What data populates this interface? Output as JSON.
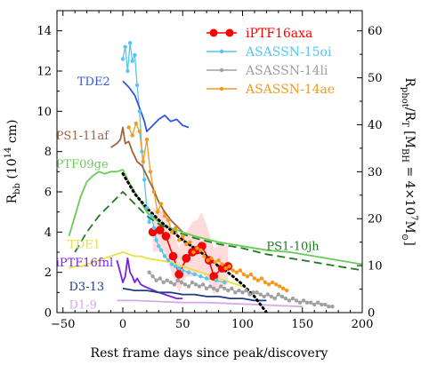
{
  "chart_data": {
    "type": "line",
    "xlabel": "Rest frame days since peak/discovery",
    "ylabel_left": "R_bb (10^14 cm)",
    "ylabel_left_parts": [
      "R",
      "bb",
      " (10",
      "14",
      " cm)"
    ],
    "ylabel_right": "R_phot/R_T [M_BH = 4×10^7 M_⊙]",
    "ylabel_right_parts": [
      "R",
      "phot",
      "/R",
      "T",
      " [M",
      "BH",
      " = 4×10",
      "7",
      "M",
      "⊙",
      "]"
    ],
    "xlim": [
      -55,
      200
    ],
    "ylim_left": [
      0,
      15
    ],
    "ylim_right": [
      0,
      64.3
    ],
    "xticks": [
      -50,
      0,
      50,
      100,
      150,
      200
    ],
    "xtick_labels": [
      "−50",
      "0",
      "50",
      "100",
      "150",
      "200"
    ],
    "yticks_left": [
      0,
      2,
      4,
      6,
      8,
      10,
      12,
      14
    ],
    "yticks_left_labels": [
      "0",
      "2",
      "4",
      "6",
      "8",
      "10",
      "12",
      "14"
    ],
    "yticks_right": [
      0,
      10,
      20,
      30,
      40,
      50,
      60
    ],
    "yticks_right_labels": [
      "0",
      "10",
      "20",
      "30",
      "40",
      "50",
      "60"
    ],
    "legend_position": "top-right",
    "legend": [
      {
        "name": "iPTF16axa",
        "color": "#ff0000",
        "marker": "circle-large"
      },
      {
        "name": "ASASSN-15oi",
        "color": "#55c6f0",
        "marker": "circle-small"
      },
      {
        "name": "ASASSN-14li",
        "color": "#a0a0a0",
        "marker": "circle-small"
      },
      {
        "name": "ASASSN-14ae",
        "color": "#f39a1e",
        "marker": "circle-small"
      }
    ],
    "series": [
      {
        "name": "iPTF16axa",
        "color": "#ff0000",
        "markers": true,
        "x": [
          25,
          31,
          36,
          42,
          47,
          53,
          58,
          62,
          66,
          72,
          76,
          83,
          88
        ],
        "y": [
          4.0,
          4.1,
          3.8,
          2.8,
          1.9,
          2.7,
          3.0,
          3.1,
          3.3,
          2.6,
          1.8,
          2.2,
          2.3
        ],
        "band_upper": [
          5.2,
          5.1,
          4.9,
          4.0,
          3.2,
          4.0,
          4.5,
          4.6,
          5.0,
          4.0,
          3.2,
          3.4,
          3.3
        ],
        "band_lower": [
          3.0,
          3.1,
          2.8,
          1.8,
          1.0,
          1.8,
          1.8,
          1.9,
          2.0,
          1.5,
          0.9,
          1.3,
          1.4
        ]
      },
      {
        "name": "ASASSN-15oi",
        "color": "#55c6f0",
        "markers": true,
        "x": [
          0,
          2,
          4,
          6,
          8,
          10,
          12,
          14,
          16,
          18,
          20,
          22,
          24,
          26,
          28,
          30,
          32,
          35,
          38,
          41,
          44,
          47,
          50,
          55,
          60,
          65,
          70,
          78,
          85
        ],
        "y": [
          12.6,
          13.2,
          12.0,
          13.4,
          12.5,
          12.8,
          11.3,
          10.0,
          8.0,
          6.6,
          5.2,
          4.5,
          4.8,
          4.2,
          3.6,
          3.3,
          3.1,
          2.8,
          2.6,
          2.4,
          2.3,
          2.2,
          2.1,
          2.0,
          1.9,
          1.8,
          1.7,
          1.6,
          1.5
        ]
      },
      {
        "name": "ASASSN-14li",
        "color": "#a0a0a0",
        "markers": true,
        "x": [
          22,
          25,
          28,
          31,
          34,
          37,
          40,
          43,
          46,
          49,
          52,
          55,
          58,
          61,
          64,
          67,
          70,
          73,
          76,
          79,
          82,
          85,
          88,
          91,
          94,
          97,
          100,
          103,
          106,
          109,
          112,
          115,
          118,
          121,
          124,
          127,
          130,
          133,
          136,
          139,
          142,
          145,
          148,
          151,
          154,
          157,
          160,
          163,
          166,
          169,
          172,
          175
        ],
        "y": [
          2.0,
          1.8,
          1.6,
          1.7,
          1.5,
          1.6,
          1.5,
          1.4,
          1.6,
          1.5,
          1.4,
          1.3,
          1.5,
          1.4,
          1.3,
          1.4,
          1.2,
          1.3,
          1.2,
          1.1,
          1.3,
          1.2,
          1.1,
          1.2,
          1.0,
          1.1,
          1.0,
          1.1,
          0.9,
          1.0,
          1.0,
          0.9,
          0.8,
          0.9,
          0.8,
          0.7,
          0.9,
          0.8,
          0.7,
          0.6,
          0.7,
          0.6,
          0.5,
          0.6,
          0.5,
          0.5,
          0.4,
          0.5,
          0.4,
          0.4,
          0.3,
          0.3
        ]
      },
      {
        "name": "ASASSN-14ae",
        "color": "#f39a1e",
        "markers": true,
        "x": [
          5,
          8,
          11,
          14,
          17,
          20,
          23,
          26,
          29,
          32,
          35,
          38,
          41,
          44,
          47,
          50,
          53,
          56,
          59,
          62,
          65,
          68,
          71,
          74,
          77,
          80,
          83,
          86,
          89,
          92,
          95,
          98,
          101,
          104,
          107,
          110,
          113,
          116,
          119,
          122,
          125,
          128,
          131,
          134,
          137
        ],
        "y": [
          9.2,
          8.8,
          9.4,
          9.0,
          7.5,
          8.6,
          7.0,
          6.0,
          5.0,
          5.4,
          4.8,
          4.6,
          4.0,
          4.2,
          3.6,
          3.8,
          3.4,
          3.5,
          3.0,
          3.2,
          3.1,
          2.8,
          2.6,
          2.7,
          2.5,
          2.6,
          2.4,
          2.2,
          2.3,
          2.1,
          2.0,
          2.1,
          1.9,
          1.8,
          1.9,
          1.7,
          1.6,
          1.7,
          1.5,
          1.4,
          1.5,
          1.4,
          1.3,
          1.2,
          1.1
        ]
      },
      {
        "name": "TDE2",
        "color": "#3355dd",
        "markers": false,
        "x": [
          0,
          5,
          10,
          15,
          18,
          20,
          25,
          30,
          35,
          40,
          45,
          50,
          55
        ],
        "y": [
          11.5,
          11.2,
          10.8,
          10.0,
          9.5,
          9.0,
          9.3,
          9.6,
          9.8,
          9.5,
          9.6,
          9.3,
          9.2
        ]
      },
      {
        "name": "PS1-11af",
        "color": "#a0643c",
        "markers": false,
        "x": [
          -10,
          -5,
          -2,
          0,
          2,
          5,
          8,
          12,
          16,
          20,
          25,
          30,
          35,
          40,
          45,
          50
        ],
        "y": [
          8.2,
          8.4,
          8.6,
          9.2,
          8.4,
          8.5,
          8.0,
          7.5,
          7.3,
          6.8,
          6.2,
          5.5,
          5.0,
          4.6,
          4.3,
          4.0
        ]
      },
      {
        "name": "PTF09ge",
        "color": "#66cc55",
        "markers": false,
        "x": [
          -45,
          -40,
          -35,
          -30,
          -25,
          -20,
          -15,
          -10,
          -5,
          0,
          5,
          10,
          15,
          20,
          30,
          40,
          50,
          60,
          80,
          100,
          120,
          140,
          160,
          180,
          200
        ],
        "y": [
          3.8,
          4.8,
          5.8,
          6.5,
          6.8,
          7.0,
          6.9,
          7.0,
          7.0,
          7.1,
          6.5,
          6.0,
          5.5,
          5.0,
          4.5,
          4.2,
          4.0,
          3.8,
          3.5,
          3.3,
          3.1,
          3.0,
          2.8,
          2.6,
          2.4
        ]
      },
      {
        "name": "PS1-10jh",
        "color": "#1f7a1f",
        "markers": false,
        "dashed": true,
        "x": [
          -40,
          -30,
          -20,
          -10,
          0,
          10,
          20,
          30,
          40,
          60,
          80,
          100,
          120,
          140,
          160,
          180,
          200
        ],
        "y": [
          3.0,
          4.0,
          4.8,
          5.4,
          6.0,
          5.4,
          4.8,
          4.4,
          4.1,
          3.7,
          3.4,
          3.2,
          2.9,
          2.7,
          2.5,
          2.3,
          2.1
        ]
      },
      {
        "name": "TDE1",
        "color": "#e8e040",
        "markers": false,
        "x": [
          -45,
          -40,
          -35,
          -30,
          -25,
          -20,
          -15,
          -10,
          -5,
          0,
          5,
          10,
          15,
          20,
          30,
          40,
          50,
          60,
          70,
          80,
          90,
          100
        ],
        "y": [
          2.2,
          2.3,
          2.3,
          2.4,
          2.5,
          2.6,
          2.7,
          2.8,
          2.9,
          3.0,
          2.9,
          2.8,
          2.8,
          2.7,
          2.6,
          2.5,
          2.3,
          2.1,
          1.9,
          1.7,
          1.5,
          1.3
        ]
      },
      {
        "name": "iPTF16fnl",
        "color": "#7722dd",
        "markers": false,
        "x": [
          -5,
          -3,
          0,
          2,
          4,
          6,
          8,
          10,
          12,
          15,
          18,
          22,
          26,
          30,
          35,
          40,
          45,
          50
        ],
        "y": [
          2.6,
          2.2,
          1.5,
          1.8,
          2.7,
          2.0,
          1.8,
          1.5,
          1.7,
          1.4,
          1.3,
          1.2,
          1.1,
          1.0,
          0.9,
          0.8,
          0.7,
          0.7
        ]
      },
      {
        "name": "D3-13",
        "color": "#1f3c88",
        "markers": false,
        "x": [
          0,
          10,
          20,
          30,
          40,
          50,
          60,
          70,
          80,
          90,
          100,
          110,
          120
        ],
        "y": [
          1.2,
          1.1,
          1.1,
          1.0,
          1.0,
          0.9,
          0.9,
          0.8,
          0.8,
          0.7,
          0.7,
          0.6,
          0.6
        ]
      },
      {
        "name": "D1-9",
        "color": "#d6a8e8",
        "markers": false,
        "x": [
          -5,
          10,
          30,
          50,
          70,
          90,
          110,
          130,
          150
        ],
        "y": [
          0.6,
          0.6,
          0.55,
          0.5,
          0.5,
          0.45,
          0.4,
          0.35,
          0.3
        ]
      },
      {
        "name": "",
        "color": "#000000",
        "markers": false,
        "dotted": true,
        "x": [
          0,
          5,
          10,
          20,
          30,
          40,
          50,
          60,
          70,
          80,
          90,
          100,
          110,
          120
        ],
        "y": [
          6.9,
          6.4,
          5.9,
          5.2,
          4.6,
          4.1,
          3.6,
          3.2,
          2.8,
          2.3,
          1.9,
          1.4,
          0.8,
          0.0
        ]
      }
    ],
    "annotations": [
      {
        "text": "TDE2",
        "color": "#3355dd",
        "x": -38,
        "y": 11.3
      },
      {
        "text": "PS1-11af",
        "color": "#a0643c",
        "x": -56,
        "y": 8.6
      },
      {
        "text": "PTF09ge",
        "color": "#66cc55",
        "x": -56,
        "y": 7.2
      },
      {
        "text": "PS1-10jh",
        "color": "#1f7a1f",
        "x": 120,
        "y": 3.1
      },
      {
        "text": "TDE1",
        "color": "#e8e040",
        "x": -46,
        "y": 3.2
      },
      {
        "text": "iPTF16fnl",
        "color": "#7722dd",
        "x": -56,
        "y": 2.3
      },
      {
        "text": "D3-13",
        "color": "#1f3c88",
        "x": -45,
        "y": 1.1
      },
      {
        "text": "D1-9",
        "color": "#d6a8e8",
        "x": -45,
        "y": 0.2
      }
    ]
  }
}
